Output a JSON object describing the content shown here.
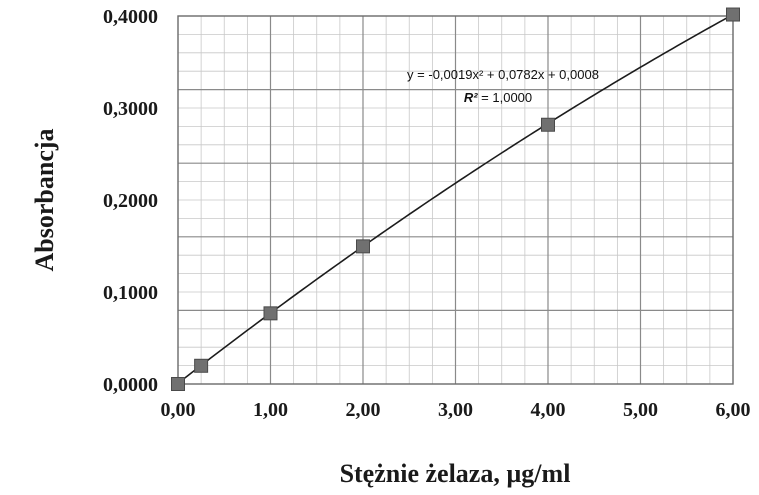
{
  "chart_data": {
    "type": "scatter",
    "xlabel": "Stężnie żelaza, µg/ml",
    "ylabel": "Absorbancja",
    "xlim": [
      0,
      6
    ],
    "ylim": [
      0,
      0.4
    ],
    "x_ticks": [
      "0,00",
      "1,00",
      "2,00",
      "3,00",
      "4,00",
      "5,00",
      "6,00"
    ],
    "y_ticks": [
      "0,0000",
      "0,1000",
      "0,2000",
      "0,3000",
      "0,4000"
    ],
    "grid": true,
    "series": [
      {
        "x": [
          0,
          0.25,
          1,
          2,
          4,
          6
        ],
        "y": [
          0.0,
          0.0198,
          0.0768,
          0.1496,
          0.2818,
          0.4016
        ],
        "marker": "square",
        "color": "#707070"
      }
    ],
    "trendline": {
      "type": "polynomial",
      "coefficients": [
        -0.0019,
        0.0782,
        0.0008
      ],
      "color": "#1c1c1c"
    },
    "annotations": {
      "equation": "y = -0,0019x² + 0,0782x + 0,0008",
      "r2_label": "R²",
      "r2_value": " = 1,0000"
    }
  }
}
